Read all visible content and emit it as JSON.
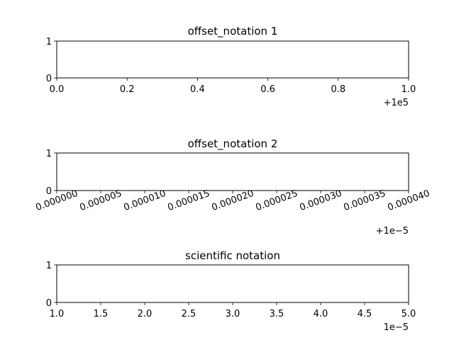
{
  "chart_data": [
    {
      "type": "line",
      "title": "offset_notation 1",
      "xlabel": "",
      "ylabel": "",
      "xlim": [
        100000,
        100001
      ],
      "ylim": [
        0,
        1
      ],
      "grid": false,
      "x_ticks": [
        100000,
        100000.2,
        100000.4,
        100000.6,
        100000.8,
        100001
      ],
      "x_tick_labels": [
        "0.0",
        "0.2",
        "0.4",
        "0.6",
        "0.8",
        "1.0"
      ],
      "x_tick_rotation": 0,
      "y_ticks": [
        0,
        1
      ],
      "y_tick_labels": [
        "0",
        "1"
      ],
      "x_offset_text": "+1e5",
      "series": []
    },
    {
      "type": "line",
      "title": "offset_notation 2",
      "xlabel": "",
      "ylabel": "",
      "xlim": [
        1e-05,
        5e-05
      ],
      "ylim": [
        0,
        1
      ],
      "grid": false,
      "x_ticks": [
        1e-05,
        1.5e-05,
        2e-05,
        2.5e-05,
        3e-05,
        3.5e-05,
        4e-05,
        4.5e-05,
        5e-05
      ],
      "x_tick_labels": [
        "0.000000",
        "0.000005",
        "0.000010",
        "0.000015",
        "0.000020",
        "0.000025",
        "0.000030",
        "0.000035",
        "0.000040"
      ],
      "x_tick_rotation": -20,
      "y_ticks": [
        0,
        1
      ],
      "y_tick_labels": [
        "0",
        "1"
      ],
      "x_offset_text": "+1e−5",
      "series": []
    },
    {
      "type": "line",
      "title": "scientific notation",
      "xlabel": "",
      "ylabel": "",
      "xlim": [
        1e-05,
        5e-05
      ],
      "ylim": [
        0,
        1
      ],
      "grid": false,
      "x_ticks": [
        1e-05,
        1.5e-05,
        2e-05,
        2.5e-05,
        3e-05,
        3.5e-05,
        4e-05,
        4.5e-05,
        5e-05
      ],
      "x_tick_labels": [
        "1.0",
        "1.5",
        "2.0",
        "2.5",
        "3.0",
        "3.5",
        "4.0",
        "4.5",
        "5.0"
      ],
      "x_tick_rotation": 0,
      "y_ticks": [
        0,
        1
      ],
      "y_tick_labels": [
        "0",
        "1"
      ],
      "x_offset_text": "1e−5",
      "series": []
    }
  ]
}
